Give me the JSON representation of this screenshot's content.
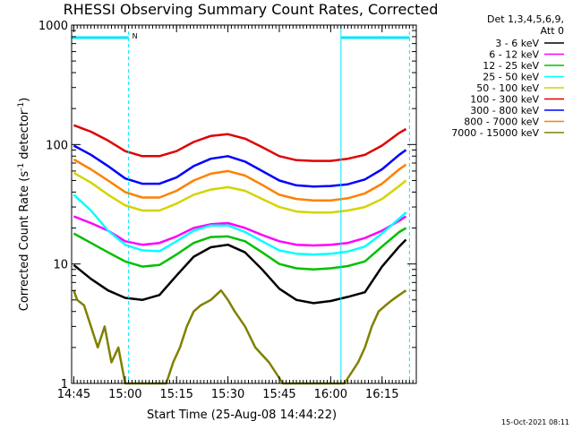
{
  "chart_data": {
    "type": "line",
    "title": "RHESSI Observing Summary Count Rates, Corrected",
    "xlabel": "Start Time (25-Aug-08 14:44:22)",
    "ylabel_main": "Corrected Count Rate (s",
    "ylabel_sup1": "-1",
    "ylabel_mid": " detector",
    "ylabel_sup2": "-1",
    "ylabel_end": ")",
    "yscale": "log",
    "ylim": [
      1,
      1000
    ],
    "xlim": [
      "14:44:22",
      "16:25:00"
    ],
    "x_ticks": [
      "14:45",
      "15:00",
      "15:15",
      "15:30",
      "15:45",
      "16:00",
      "16:15"
    ],
    "y_ticks": [
      "1",
      "10",
      "100",
      "1000"
    ],
    "legend_header": [
      "Det 1,3,4,5,6,9,",
      "Att 0"
    ],
    "legend_position": "right",
    "annotations": {
      "night_flag_label": "N",
      "night_intervals": [
        [
          "14:44:22",
          "15:01:00"
        ],
        [
          "16:03:00",
          "16:23:00"
        ]
      ]
    },
    "footer_timestamp": "15-Oct-2021 08:11",
    "colors": {
      "flag": "#00e5ff",
      "axes": "#000000"
    },
    "series": [
      {
        "name": "3 - 6 keV",
        "color": "#000000",
        "points": [
          [
            "14:45",
            9.8
          ],
          [
            "14:50",
            7.5
          ],
          [
            "14:55",
            6.0
          ],
          [
            "15:00",
            5.2
          ],
          [
            "15:05",
            5.0
          ],
          [
            "15:10",
            5.5
          ],
          [
            "15:15",
            8.0
          ],
          [
            "15:20",
            11.5
          ],
          [
            "15:25",
            13.8
          ],
          [
            "15:30",
            14.5
          ],
          [
            "15:35",
            12.5
          ],
          [
            "15:40",
            9.0
          ],
          [
            "15:45",
            6.2
          ],
          [
            "15:50",
            5.0
          ],
          [
            "15:55",
            4.7
          ],
          [
            "16:00",
            4.9
          ],
          [
            "16:05",
            5.3
          ],
          [
            "16:10",
            5.8
          ],
          [
            "16:15",
            9.5
          ],
          [
            "16:20",
            14.0
          ],
          [
            "16:22",
            16.0
          ]
        ]
      },
      {
        "name": "6 - 12 keV",
        "color": "#ff00ff",
        "points": [
          [
            "14:45",
            25
          ],
          [
            "14:50",
            22
          ],
          [
            "14:55",
            19
          ],
          [
            "15:00",
            15.5
          ],
          [
            "15:05",
            14.5
          ],
          [
            "15:10",
            15.0
          ],
          [
            "15:15",
            17.0
          ],
          [
            "15:20",
            20.0
          ],
          [
            "15:25",
            21.5
          ],
          [
            "15:30",
            22.0
          ],
          [
            "15:35",
            20.0
          ],
          [
            "15:40",
            17.5
          ],
          [
            "15:45",
            15.5
          ],
          [
            "15:50",
            14.5
          ],
          [
            "15:55",
            14.3
          ],
          [
            "16:00",
            14.5
          ],
          [
            "16:05",
            15.0
          ],
          [
            "16:10",
            16.5
          ],
          [
            "16:15",
            19.0
          ],
          [
            "16:20",
            23.0
          ],
          [
            "16:22",
            25.0
          ]
        ]
      },
      {
        "name": "12 - 25 keV",
        "color": "#00c000",
        "points": [
          [
            "14:45",
            18
          ],
          [
            "14:50",
            15
          ],
          [
            "14:55",
            12.5
          ],
          [
            "15:00",
            10.5
          ],
          [
            "15:05",
            9.5
          ],
          [
            "15:10",
            9.8
          ],
          [
            "15:15",
            12.0
          ],
          [
            "15:20",
            15.0
          ],
          [
            "15:25",
            16.8
          ],
          [
            "15:30",
            17.0
          ],
          [
            "15:35",
            15.5
          ],
          [
            "15:40",
            12.5
          ],
          [
            "15:45",
            10.0
          ],
          [
            "15:50",
            9.2
          ],
          [
            "15:55",
            9.0
          ],
          [
            "16:00",
            9.2
          ],
          [
            "16:05",
            9.6
          ],
          [
            "16:10",
            10.5
          ],
          [
            "16:15",
            14.0
          ],
          [
            "16:20",
            18.5
          ],
          [
            "16:22",
            20.0
          ]
        ]
      },
      {
        "name": "25 - 50 keV",
        "color": "#00ffff",
        "points": [
          [
            "14:45",
            38
          ],
          [
            "14:50",
            28
          ],
          [
            "14:55",
            19
          ],
          [
            "15:00",
            14.5
          ],
          [
            "15:05",
            13.0
          ],
          [
            "15:10",
            12.8
          ],
          [
            "15:15",
            15.5
          ],
          [
            "15:20",
            19.0
          ],
          [
            "15:25",
            21.0
          ],
          [
            "15:30",
            21.0
          ],
          [
            "15:35",
            18.5
          ],
          [
            "15:40",
            15.5
          ],
          [
            "15:45",
            13.0
          ],
          [
            "15:50",
            12.2
          ],
          [
            "15:55",
            12.0
          ],
          [
            "16:00",
            12.2
          ],
          [
            "16:05",
            12.7
          ],
          [
            "16:10",
            14.0
          ],
          [
            "16:15",
            18.0
          ],
          [
            "16:20",
            24.0
          ],
          [
            "16:22",
            27.0
          ]
        ]
      },
      {
        "name": "50 - 100 keV",
        "color": "#d4d400",
        "points": [
          [
            "14:45",
            58
          ],
          [
            "14:50",
            48
          ],
          [
            "14:55",
            38
          ],
          [
            "15:00",
            31
          ],
          [
            "15:05",
            28
          ],
          [
            "15:10",
            28
          ],
          [
            "15:15",
            32
          ],
          [
            "15:20",
            38
          ],
          [
            "15:25",
            42
          ],
          [
            "15:30",
            44
          ],
          [
            "15:35",
            41
          ],
          [
            "15:40",
            35
          ],
          [
            "15:45",
            30
          ],
          [
            "15:50",
            27.5
          ],
          [
            "15:55",
            27
          ],
          [
            "16:00",
            27
          ],
          [
            "16:05",
            28
          ],
          [
            "16:10",
            30
          ],
          [
            "16:15",
            35
          ],
          [
            "16:20",
            45
          ],
          [
            "16:22",
            50
          ]
        ]
      },
      {
        "name": "100 - 300 keV",
        "color": "#e00000",
        "points": [
          [
            "14:45",
            145
          ],
          [
            "14:50",
            128
          ],
          [
            "14:55",
            108
          ],
          [
            "15:00",
            88
          ],
          [
            "15:05",
            80
          ],
          [
            "15:10",
            80
          ],
          [
            "15:15",
            88
          ],
          [
            "15:20",
            105
          ],
          [
            "15:25",
            118
          ],
          [
            "15:30",
            122
          ],
          [
            "15:35",
            112
          ],
          [
            "15:40",
            95
          ],
          [
            "15:45",
            80
          ],
          [
            "15:50",
            74
          ],
          [
            "15:55",
            73
          ],
          [
            "16:00",
            73
          ],
          [
            "16:05",
            76
          ],
          [
            "16:10",
            82
          ],
          [
            "16:15",
            98
          ],
          [
            "16:20",
            125
          ],
          [
            "16:22",
            135
          ]
        ]
      },
      {
        "name": "300 - 800 keV",
        "color": "#0000ff",
        "points": [
          [
            "14:45",
            98
          ],
          [
            "14:50",
            82
          ],
          [
            "14:55",
            66
          ],
          [
            "15:00",
            52
          ],
          [
            "15:05",
            47
          ],
          [
            "15:10",
            47
          ],
          [
            "15:15",
            53
          ],
          [
            "15:20",
            66
          ],
          [
            "15:25",
            76
          ],
          [
            "15:30",
            80
          ],
          [
            "15:35",
            72
          ],
          [
            "15:40",
            60
          ],
          [
            "15:45",
            50
          ],
          [
            "15:50",
            45.5
          ],
          [
            "15:55",
            44.5
          ],
          [
            "16:00",
            45
          ],
          [
            "16:05",
            46.5
          ],
          [
            "16:10",
            51
          ],
          [
            "16:15",
            62
          ],
          [
            "16:20",
            82
          ],
          [
            "16:22",
            90
          ]
        ]
      },
      {
        "name": "800 - 7000 keV",
        "color": "#ff8000",
        "points": [
          [
            "14:45",
            75
          ],
          [
            "14:50",
            62
          ],
          [
            "14:55",
            50
          ],
          [
            "15:00",
            40
          ],
          [
            "15:05",
            36
          ],
          [
            "15:10",
            36
          ],
          [
            "15:15",
            41
          ],
          [
            "15:20",
            50
          ],
          [
            "15:25",
            57
          ],
          [
            "15:30",
            60
          ],
          [
            "15:35",
            55
          ],
          [
            "15:40",
            46
          ],
          [
            "15:45",
            38
          ],
          [
            "15:50",
            35
          ],
          [
            "15:55",
            34
          ],
          [
            "16:00",
            34
          ],
          [
            "16:05",
            35.5
          ],
          [
            "16:10",
            39
          ],
          [
            "16:15",
            47
          ],
          [
            "16:20",
            62
          ],
          [
            "16:22",
            68
          ]
        ]
      },
      {
        "name": "7000 - 15000 keV",
        "color": "#808000",
        "points": [
          [
            "14:45",
            6.0
          ],
          [
            "14:46",
            5.0
          ],
          [
            "14:48",
            4.5
          ],
          [
            "14:50",
            3.0
          ],
          [
            "14:52",
            2.0
          ],
          [
            "14:54",
            3.0
          ],
          [
            "14:56",
            1.5
          ],
          [
            "14:58",
            2.0
          ],
          [
            "15:00",
            1.0
          ],
          [
            "15:04",
            1.0
          ],
          [
            "15:08",
            1.0
          ],
          [
            "15:12",
            1.0
          ],
          [
            "15:14",
            1.5
          ],
          [
            "15:16",
            2.0
          ],
          [
            "15:18",
            3.0
          ],
          [
            "15:20",
            4.0
          ],
          [
            "15:22",
            4.5
          ],
          [
            "15:25",
            5.0
          ],
          [
            "15:28",
            6.0
          ],
          [
            "15:30",
            5.0
          ],
          [
            "15:32",
            4.0
          ],
          [
            "15:35",
            3.0
          ],
          [
            "15:38",
            2.0
          ],
          [
            "15:42",
            1.5
          ],
          [
            "15:46",
            1.0
          ],
          [
            "15:50",
            1.0
          ],
          [
            "15:55",
            1.0
          ],
          [
            "16:00",
            1.0
          ],
          [
            "16:04",
            1.0
          ],
          [
            "16:08",
            1.5
          ],
          [
            "16:10",
            2.0
          ],
          [
            "16:12",
            3.0
          ],
          [
            "16:14",
            4.0
          ],
          [
            "16:16",
            4.5
          ],
          [
            "16:18",
            5.0
          ],
          [
            "16:20",
            5.5
          ],
          [
            "16:22",
            6.0
          ]
        ]
      }
    ]
  }
}
